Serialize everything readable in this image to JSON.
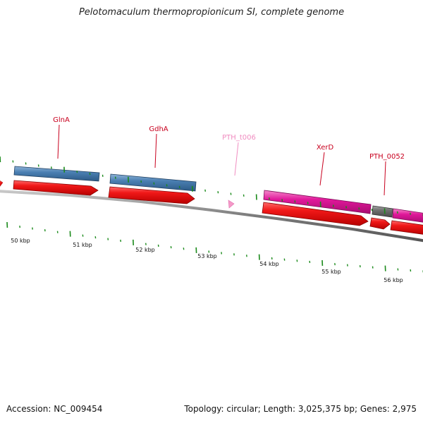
{
  "title": "Pelotomaculum thermopropionicum SI, complete genome",
  "footer": {
    "accession": "Accession: NC_009454",
    "summary": "Topology: circular; Length: 3,025,375 bp; Genes: 2,975"
  },
  "colors": {
    "cds": "#e81515",
    "blue_feature": "#4a7fb2",
    "xerd": "#e0189a",
    "grey_feature": "#707070",
    "trna": "#f59ac8",
    "tick": "#1a8a1a",
    "gene_label": "#c8001e",
    "trna_label": "#f08cc0"
  },
  "gene_labels": [
    {
      "id": "glna",
      "text": "GlnA",
      "kind": "gene"
    },
    {
      "id": "gdha",
      "text": "GdhA",
      "kind": "gene"
    },
    {
      "id": "pth-t006",
      "text": "PTH_t006",
      "kind": "trna"
    },
    {
      "id": "xerd",
      "text": "XerD",
      "kind": "gene"
    },
    {
      "id": "pth-0052",
      "text": "PTH_0052",
      "kind": "gene"
    }
  ],
  "scale_labels": [
    "50 kbp",
    "51 kbp",
    "52 kbp",
    "53 kbp",
    "54 kbp",
    "55 kbp",
    "56 kbp"
  ]
}
